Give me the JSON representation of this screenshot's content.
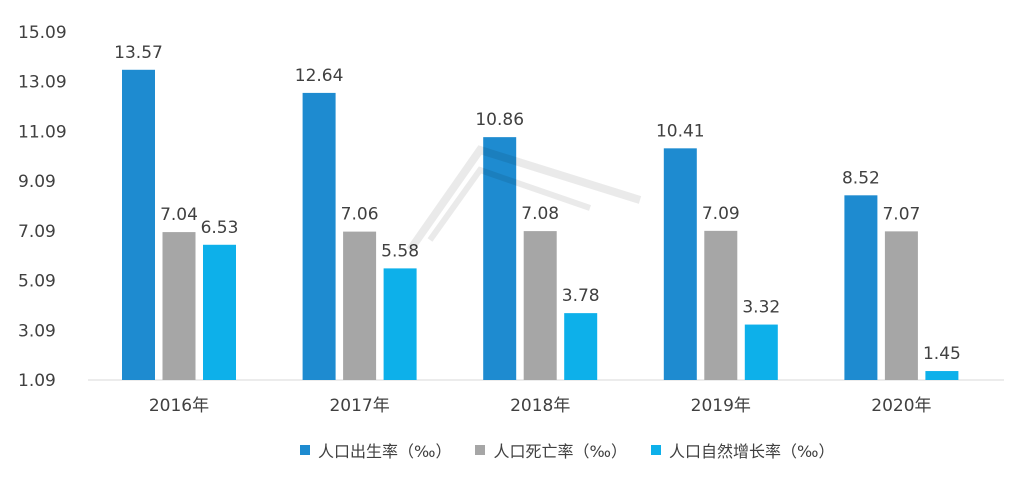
{
  "chart_data": {
    "type": "bar",
    "categories": [
      "2016年",
      "2017年",
      "2018年",
      "2019年",
      "2020年"
    ],
    "series": [
      {
        "name": "人口出生率（‰）",
        "color": "#1e8bd0",
        "values": [
          13.57,
          12.64,
          10.86,
          10.41,
          8.52
        ]
      },
      {
        "name": "人口死亡率（‰）",
        "color": "#a6a6a6",
        "values": [
          7.04,
          7.06,
          7.08,
          7.09,
          7.07
        ]
      },
      {
        "name": "人口自然增长率（‰）",
        "color": "#0db0ea",
        "values": [
          6.53,
          5.58,
          3.78,
          3.32,
          1.45
        ]
      }
    ],
    "yticks": [
      "1.09",
      "3.09",
      "5.09",
      "7.09",
      "9.09",
      "11.09",
      "13.09",
      "15.09"
    ],
    "ylim": [
      1.09,
      15.09
    ],
    "legend_position": "bottom",
    "grid": false
  }
}
